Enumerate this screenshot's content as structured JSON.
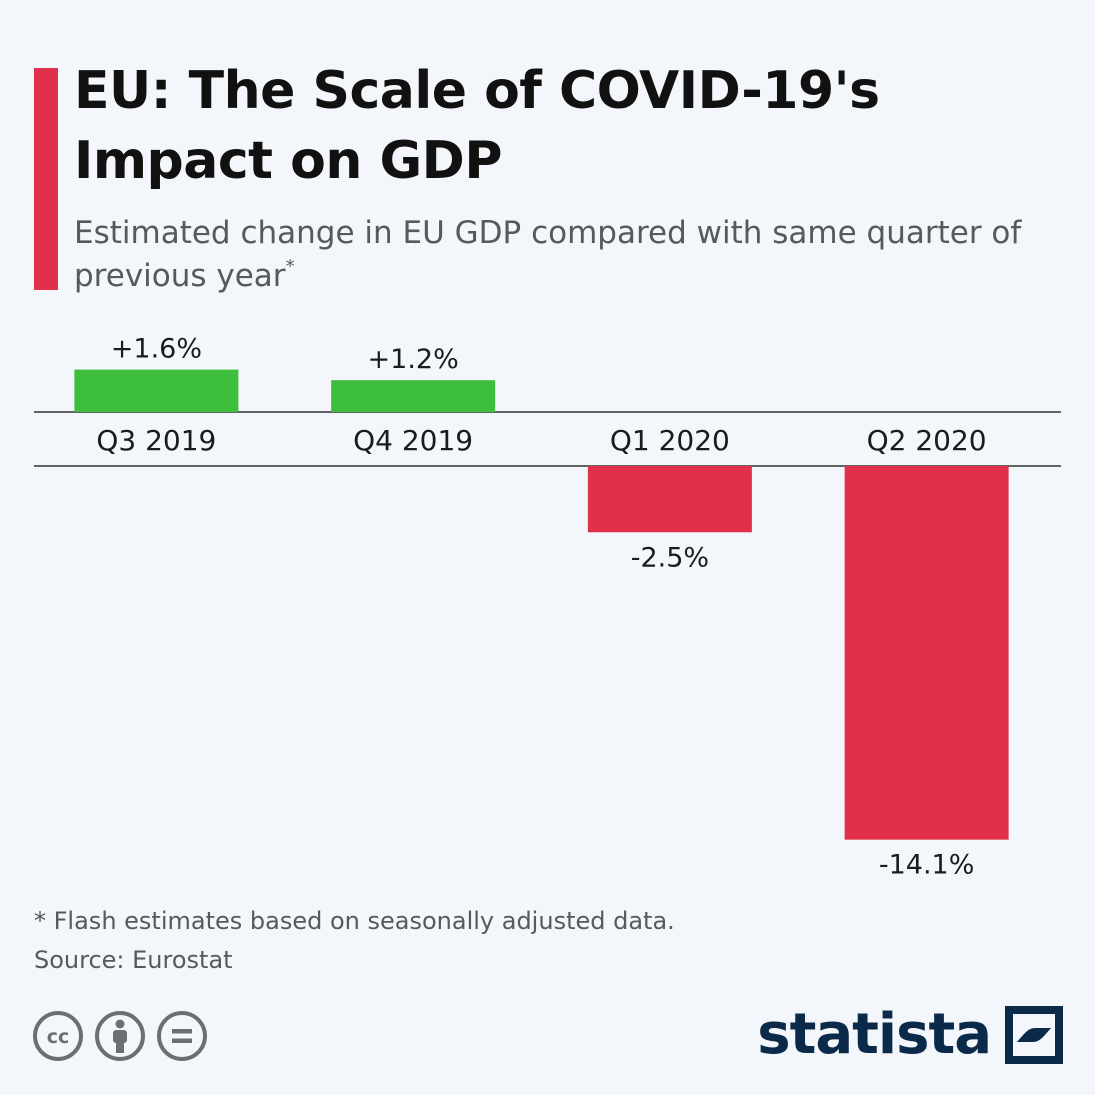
{
  "header": {
    "title": "EU: The Scale of COVID-19's Impact on GDP",
    "subtitle": "Estimated change in EU GDP compared with same quarter of previous year",
    "subtitle_marker": "*"
  },
  "chart_data": {
    "type": "bar",
    "categories": [
      "Q3 2019",
      "Q4 2019",
      "Q1 2020",
      "Q2 2020"
    ],
    "values": [
      1.6,
      1.2,
      -2.5,
      -14.1
    ],
    "labels": [
      "+1.6%",
      "+1.2%",
      "-2.5%",
      "-14.1%"
    ],
    "unit": "%",
    "title": "EU: The Scale of COVID-19's Impact on GDP",
    "xlabel": "",
    "ylabel": "",
    "grid": false,
    "colors": {
      "positive": "#3dbf3d",
      "negative": "#e0304a",
      "axis": "#333333"
    }
  },
  "footer": {
    "footnote": "* Flash estimates based on seasonally adjusted data.",
    "source": "Source: Eurostat",
    "brand": "statista",
    "license_icons": [
      "creative-commons-icon",
      "attribution-icon",
      "no-derivatives-icon"
    ]
  },
  "colors": {
    "background": "#f3f6fa",
    "accent": "#e0304a",
    "brand": "#0b2a4a"
  }
}
